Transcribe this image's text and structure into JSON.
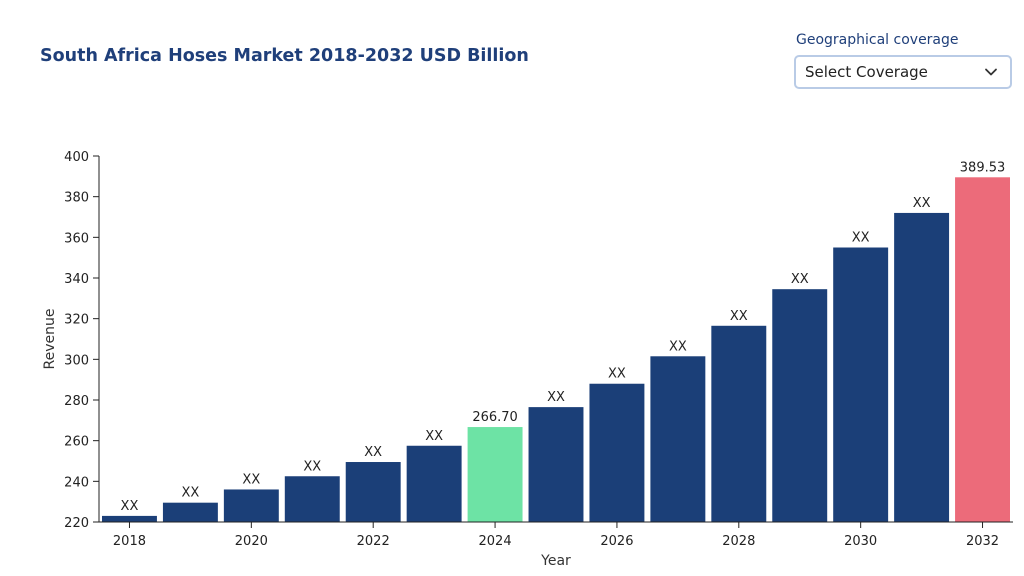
{
  "header": {
    "title": "South Africa Hoses Market 2018-2032 USD Billion"
  },
  "coverage": {
    "label": "Geographical coverage",
    "selected": "Select Coverage",
    "icon": "chevron-down-icon"
  },
  "chart_data": {
    "type": "bar",
    "xlabel": "Year",
    "ylabel": "Revenue",
    "ylim": [
      220,
      400
    ],
    "yticks": [
      220,
      240,
      260,
      280,
      300,
      320,
      340,
      360,
      380,
      400
    ],
    "xticks": [
      "2018",
      "2020",
      "2022",
      "2024",
      "2026",
      "2028",
      "2030",
      "2032"
    ],
    "categories": [
      "2018",
      "2019",
      "2020",
      "2021",
      "2022",
      "2023",
      "2024",
      "2025",
      "2026",
      "2027",
      "2028",
      "2029",
      "2030",
      "2031",
      "2032"
    ],
    "values": [
      223,
      229.5,
      236,
      242.5,
      249.5,
      257.5,
      266.7,
      276.5,
      288,
      301.5,
      316.5,
      334.5,
      355,
      372,
      389.53
    ],
    "labels": [
      "XX",
      "XX",
      "XX",
      "XX",
      "XX",
      "XX",
      "266.70",
      "XX",
      "XX",
      "XX",
      "XX",
      "XX",
      "XX",
      "XX",
      "389.53"
    ],
    "colors": {
      "default": "#1b3f78",
      "highlight_2024": "#6de3a5",
      "highlight_2032": "#ec6b7a"
    },
    "grid": false,
    "legend": "none"
  }
}
